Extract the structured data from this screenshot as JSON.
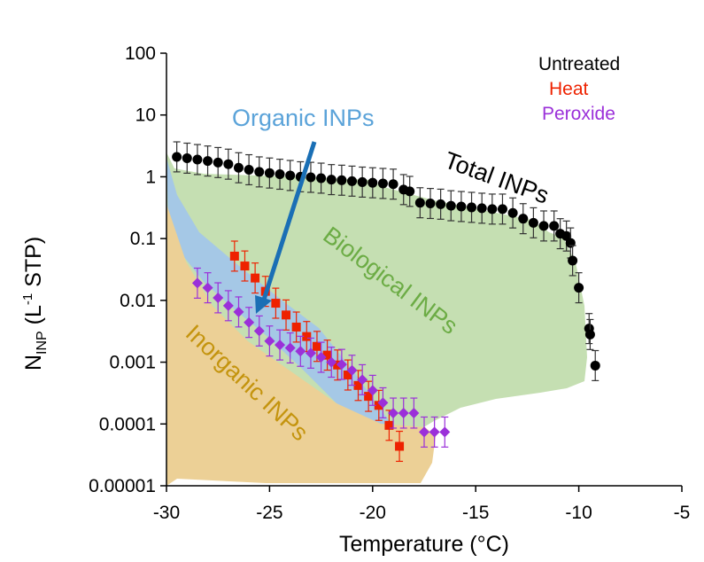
{
  "chart_data": {
    "type": "scatter",
    "xlabel": "Temperature (°C)",
    "ylabel": {
      "base": "N",
      "sub": "INP",
      "open": " (L",
      "sup": "-1",
      "close": " STP)"
    },
    "xlim": [
      -30,
      -5
    ],
    "ylim": [
      1e-05,
      100
    ],
    "yscale": "log",
    "x_ticks": [
      -30,
      -25,
      -20,
      -15,
      -10,
      -5
    ],
    "x_tick_labels": [
      "-30",
      "-25",
      "-20",
      "-15",
      "-10",
      "-5"
    ],
    "y_ticks": [
      1e-05,
      0.0001,
      0.001,
      0.01,
      0.1,
      1,
      10,
      100
    ],
    "y_tick_labels": [
      "0.00001",
      "0.0001",
      "0.001",
      "0.01",
      "0.1",
      "1",
      "10",
      "100"
    ],
    "legend": {
      "placement": "top-right",
      "entries": [
        {
          "label": "Untreated",
          "color": "#000000"
        },
        {
          "label": "Heat",
          "color": "#ee2200"
        },
        {
          "label": "Peroxide",
          "color": "#9b30d9"
        }
      ]
    },
    "region_labels": {
      "total": "Total INPs",
      "biological": "Biological INPs",
      "organic": "Organic INPs",
      "inorganic": "Inorganic INPs"
    },
    "region_colors": {
      "biological": "#c5dfb2",
      "organic": "#a5c8e6",
      "inorganic": "#ecd096",
      "organic_label": "#5ba3d9",
      "biological_label": "#6cac45",
      "inorganic_label": "#c4940e",
      "arrow": "#1a6fb5"
    },
    "series": [
      {
        "name": "Untreated",
        "marker": "circle",
        "color": "#000000",
        "points": [
          [
            -29.5,
            2.1
          ],
          [
            -29.0,
            2.0
          ],
          [
            -28.5,
            1.9
          ],
          [
            -28.0,
            1.8
          ],
          [
            -27.5,
            1.7
          ],
          [
            -27.0,
            1.6
          ],
          [
            -26.5,
            1.4
          ],
          [
            -26.0,
            1.3
          ],
          [
            -25.5,
            1.2
          ],
          [
            -25.0,
            1.15
          ],
          [
            -24.5,
            1.1
          ],
          [
            -24.0,
            1.05
          ],
          [
            -23.5,
            1.0
          ],
          [
            -23.0,
            0.98
          ],
          [
            -22.5,
            0.95
          ],
          [
            -22.0,
            0.9
          ],
          [
            -21.5,
            0.88
          ],
          [
            -21.0,
            0.85
          ],
          [
            -20.5,
            0.82
          ],
          [
            -20.0,
            0.8
          ],
          [
            -19.5,
            0.78
          ],
          [
            -19.0,
            0.76
          ],
          [
            -18.5,
            0.62
          ],
          [
            -18.2,
            0.58
          ],
          [
            -17.7,
            0.38
          ],
          [
            -17.2,
            0.37
          ],
          [
            -16.7,
            0.36
          ],
          [
            -16.2,
            0.34
          ],
          [
            -15.7,
            0.33
          ],
          [
            -15.2,
            0.32
          ],
          [
            -14.7,
            0.31
          ],
          [
            -14.2,
            0.3
          ],
          [
            -13.7,
            0.3
          ],
          [
            -13.2,
            0.26
          ],
          [
            -12.7,
            0.21
          ],
          [
            -12.2,
            0.18
          ],
          [
            -11.7,
            0.16
          ],
          [
            -11.2,
            0.16
          ],
          [
            -10.9,
            0.12
          ],
          [
            -10.6,
            0.11
          ],
          [
            -10.4,
            0.085
          ],
          [
            -10.3,
            0.044
          ],
          [
            -10.0,
            0.016
          ],
          [
            -9.5,
            0.0035
          ],
          [
            -9.45,
            0.0028
          ],
          [
            -9.2,
            0.00088
          ]
        ]
      },
      {
        "name": "Heat",
        "marker": "square",
        "color": "#ee2200",
        "points": [
          [
            -26.7,
            0.052
          ],
          [
            -26.2,
            0.036
          ],
          [
            -25.7,
            0.023
          ],
          [
            -25.2,
            0.014
          ],
          [
            -24.7,
            0.009
          ],
          [
            -24.2,
            0.0058
          ],
          [
            -23.7,
            0.0037
          ],
          [
            -23.2,
            0.0026
          ],
          [
            -22.7,
            0.0018
          ],
          [
            -22.2,
            0.0013
          ],
          [
            -21.7,
            0.0009
          ],
          [
            -21.2,
            0.00062
          ],
          [
            -20.7,
            0.00042
          ],
          [
            -20.2,
            0.00028
          ],
          [
            -19.7,
            0.0002
          ],
          [
            -19.2,
            9.5e-05
          ],
          [
            -18.7,
            4.35e-05
          ]
        ]
      },
      {
        "name": "Peroxide",
        "marker": "diamond",
        "color": "#9b30d9",
        "points": [
          [
            -28.5,
            0.019
          ],
          [
            -28.0,
            0.016
          ],
          [
            -27.5,
            0.011
          ],
          [
            -27.0,
            0.0082
          ],
          [
            -26.5,
            0.0065
          ],
          [
            -26.0,
            0.0044
          ],
          [
            -25.5,
            0.0032
          ],
          [
            -25.0,
            0.0022
          ],
          [
            -24.5,
            0.0019
          ],
          [
            -24.0,
            0.0017
          ],
          [
            -23.5,
            0.0015
          ],
          [
            -23.0,
            0.0014
          ],
          [
            -22.5,
            0.0012
          ],
          [
            -22.0,
            0.001
          ],
          [
            -21.5,
            0.00092
          ],
          [
            -21.0,
            0.00074
          ],
          [
            -20.5,
            0.00052
          ],
          [
            -20.0,
            0.00035
          ],
          [
            -19.5,
            0.00022
          ],
          [
            -19.0,
            0.00015
          ],
          [
            -18.5,
            0.00015
          ],
          [
            -18.0,
            0.00015
          ],
          [
            -17.5,
            7.4e-05
          ],
          [
            -17.0,
            7.4e-05
          ],
          [
            -16.5,
            7.4e-05
          ]
        ]
      }
    ]
  }
}
